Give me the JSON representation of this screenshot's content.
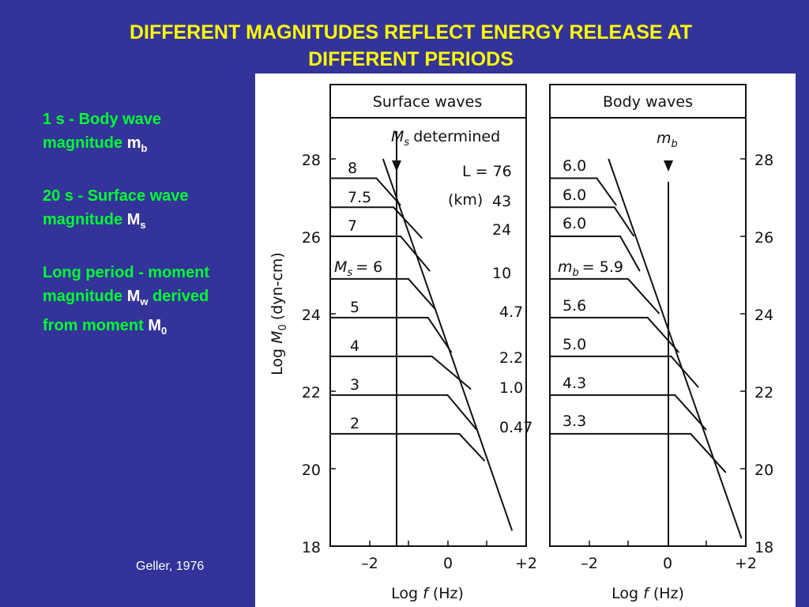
{
  "slide": {
    "title_line1": "DIFFERENT MAGNITUDES REFLECT ENERGY RELEASE AT",
    "title_line2": "DIFFERENT PERIODS",
    "bullet1_prefix": "1 s - Body wave magnitude",
    "bullet1_symbol": "m",
    "bullet1_sub": "b",
    "bullet2_prefix": "20 s - Surface wave magnitude",
    "bullet2_symbol": "M",
    "bullet2_sub": "s",
    "bullet3_line1": "Long period - moment magnitude",
    "bullet3_symbol": "M",
    "bullet3_sub": "w",
    "bullet3_mid": "derived from moment",
    "bullet3_symbol2": "M",
    "bullet3_sub2": "0",
    "citation": "Geller, 1976",
    "colors": {
      "background": "#333399",
      "title": "#ffff00",
      "bullets": "#00ff33",
      "symbols": "#ffffff"
    }
  },
  "figure": {
    "left_panel": {
      "header": "Surface waves",
      "marker_label": "determined",
      "marker_symbol": "M",
      "marker_sub": "s",
      "magnitude_labels": [
        "8",
        "7.5",
        "7",
        "= 6",
        "5",
        "4",
        "3",
        "2"
      ],
      "first_magnitude_symbol": "M",
      "first_magnitude_sub": "s",
      "length_header1": "L = 76",
      "length_unit": "(km)",
      "lengths": [
        "43",
        "24",
        "10",
        "4.7",
        "2.2",
        "1.0",
        "0.47"
      ]
    },
    "right_panel": {
      "header": "Body waves",
      "marker_symbol": "m",
      "marker_sub": "b",
      "magnitude_labels": [
        "6.0",
        "6.0",
        "6.0",
        "= 5.9",
        "5.6",
        "5.0",
        "4.3",
        "3.3"
      ],
      "first_magnitude_symbol": "m",
      "first_magnitude_sub": "b"
    },
    "ylabel_prefix": "Log",
    "ylabel_symbol": "M",
    "ylabel_sub": "0",
    "ylabel_unit": "(dyn-cm)",
    "xlabel_prefix": "Log",
    "xlabel_symbol": "f",
    "xlabel_unit": "(Hz)",
    "y_ticks": [
      "28",
      "26",
      "24",
      "22",
      "20",
      "18"
    ],
    "x_ticks": [
      "–2",
      "0",
      "+2"
    ]
  },
  "chart_data": {
    "type": "line",
    "title": "",
    "xlabel": "Log f (Hz)",
    "ylabel": "Log M0 (dyn-cm)",
    "xlim": [
      -3,
      2
    ],
    "ylim": [
      18,
      29
    ],
    "y_ticks": [
      18,
      20,
      22,
      24,
      26,
      28
    ],
    "x_ticks": [
      -2,
      0,
      2
    ],
    "grid": false,
    "panels": [
      {
        "name": "Surface waves",
        "marker_x": -1.3,
        "marker_label": "Ms determined",
        "high_freq_asymptote": [
          [
            -1.65,
            28
          ],
          [
            1.65,
            18.4
          ]
        ],
        "series": [
          {
            "name": "8",
            "values": [
              [
                -3,
                27.5
              ],
              [
                -1.82,
                27.5
              ],
              [
                -1.2,
                26.8
              ]
            ]
          },
          {
            "name": "7.5",
            "values": [
              [
                -3,
                26.75
              ],
              [
                -1.38,
                26.75
              ],
              [
                -0.65,
                25.95
              ]
            ]
          },
          {
            "name": "7",
            "values": [
              [
                -3,
                26.0
              ],
              [
                -1.2,
                26.0
              ],
              [
                -0.45,
                25.1
              ]
            ]
          },
          {
            "name": "6",
            "values": [
              [
                -3,
                24.9
              ],
              [
                -1.0,
                24.9
              ],
              [
                -0.3,
                24.1
              ]
            ]
          },
          {
            "name": "5",
            "values": [
              [
                -3,
                23.9
              ],
              [
                -0.5,
                23.9
              ],
              [
                0.1,
                23.0
              ]
            ]
          },
          {
            "name": "4",
            "values": [
              [
                -3,
                22.9
              ],
              [
                -0.4,
                22.9
              ],
              [
                0.6,
                22.05
              ]
            ]
          },
          {
            "name": "3",
            "values": [
              [
                -3,
                21.9
              ],
              [
                0.0,
                21.9
              ],
              [
                0.75,
                21.0
              ]
            ]
          },
          {
            "name": "2",
            "values": [
              [
                -3,
                20.9
              ],
              [
                0.3,
                20.9
              ],
              [
                0.95,
                20.2
              ]
            ]
          }
        ],
        "lengths_km": [
          76,
          43,
          24,
          10,
          4.7,
          2.2,
          1.0,
          0.47
        ]
      },
      {
        "name": "Body waves",
        "marker_x": 0,
        "marker_label": "mb",
        "high_freq_asymptote": [
          [
            -1.5,
            28
          ],
          [
            1.9,
            18.2
          ]
        ],
        "series": [
          {
            "name": "6.0",
            "values": [
              [
                -3,
                27.5
              ],
              [
                -1.8,
                27.5
              ],
              [
                -1.3,
                26.8
              ]
            ]
          },
          {
            "name": "6.0",
            "values": [
              [
                -3,
                26.75
              ],
              [
                -1.35,
                26.75
              ],
              [
                -0.85,
                26.0
              ]
            ]
          },
          {
            "name": "6.0",
            "values": [
              [
                -3,
                26.0
              ],
              [
                -1.2,
                26.0
              ],
              [
                -0.7,
                25.1
              ]
            ]
          },
          {
            "name": "5.9",
            "values": [
              [
                -3,
                24.9
              ],
              [
                -1.0,
                24.9
              ],
              [
                -0.2,
                24.0
              ]
            ]
          },
          {
            "name": "5.6",
            "values": [
              [
                -3,
                23.9
              ],
              [
                -0.5,
                23.9
              ],
              [
                0.3,
                23.0
              ]
            ]
          },
          {
            "name": "5.0",
            "values": [
              [
                -3,
                22.9
              ],
              [
                0.1,
                22.9
              ],
              [
                0.8,
                22.1
              ]
            ]
          },
          {
            "name": "4.3",
            "values": [
              [
                -3,
                21.9
              ],
              [
                0.2,
                21.9
              ],
              [
                1.0,
                21.0
              ]
            ]
          },
          {
            "name": "3.3",
            "values": [
              [
                -3,
                20.9
              ],
              [
                0.6,
                20.9
              ],
              [
                1.5,
                19.9
              ]
            ]
          }
        ]
      }
    ]
  }
}
